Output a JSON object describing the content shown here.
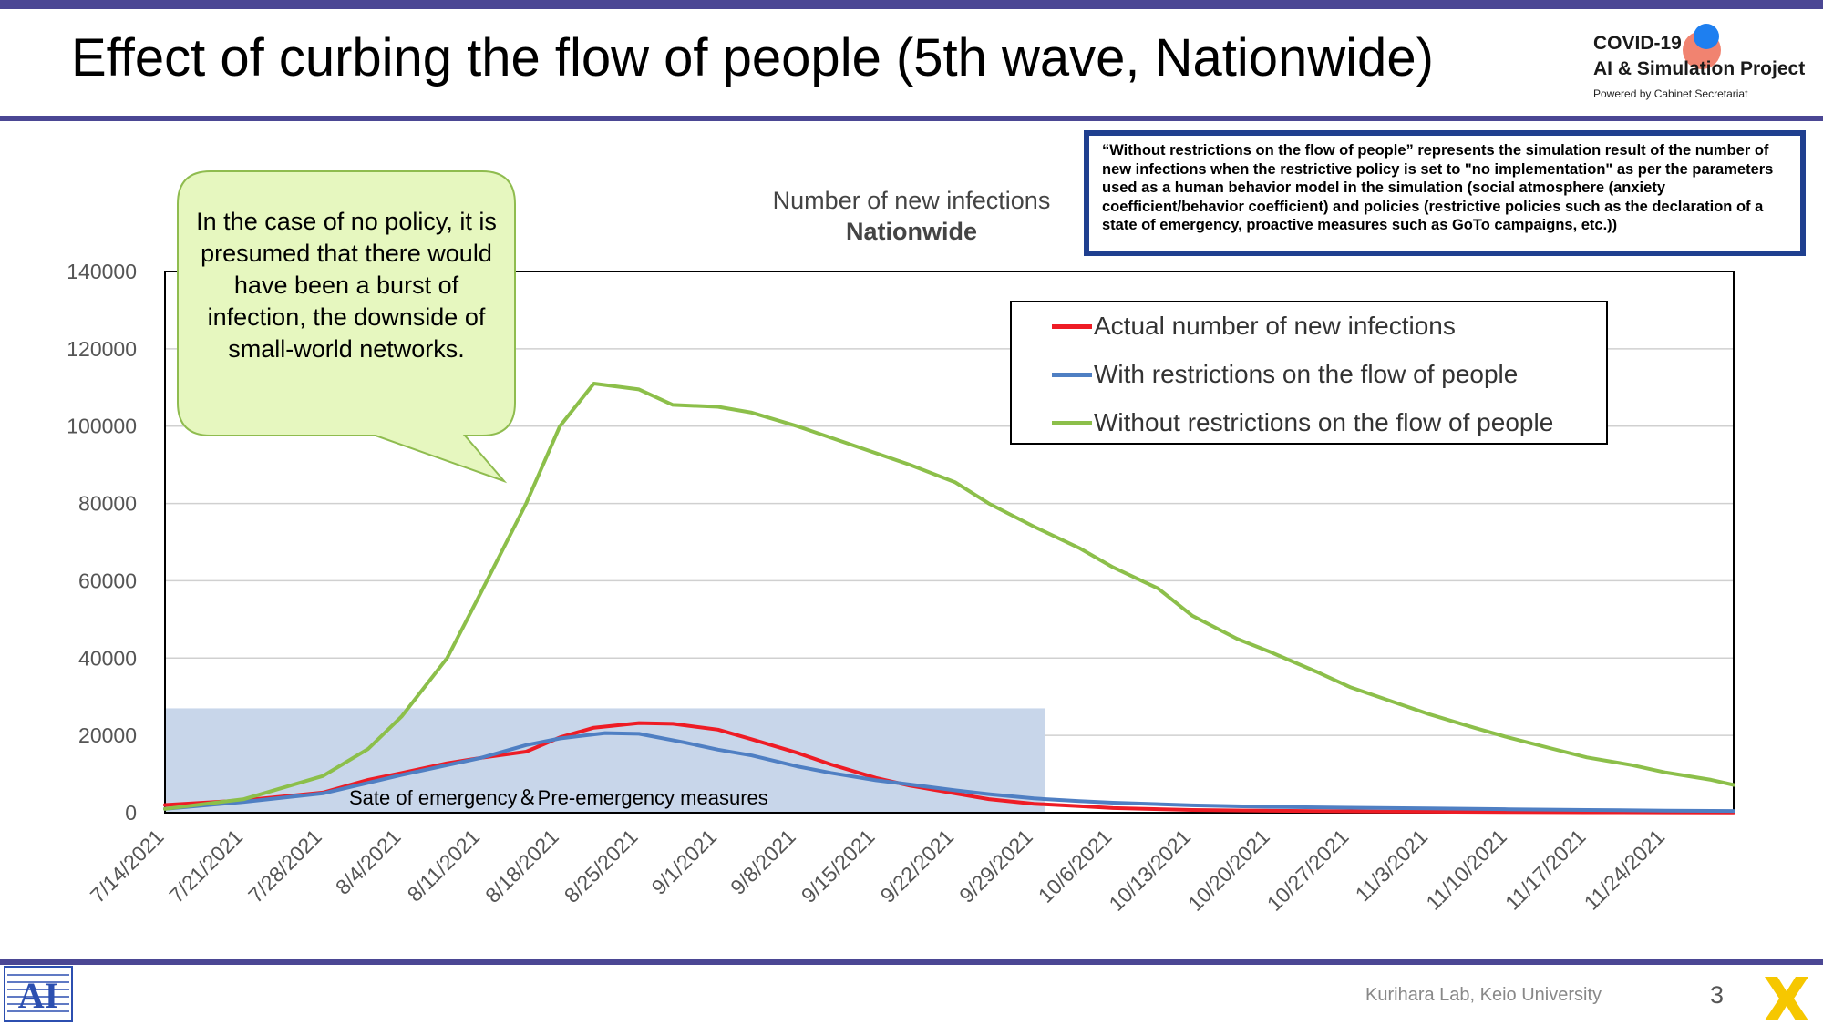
{
  "slide": {
    "title": "Effect of curbing the flow of people (5th wave, Nationwide)",
    "page_number": "3",
    "credit": "Kurihara Lab, Keio University"
  },
  "logo": {
    "line1": "COVID-19",
    "line2": "AI & Simulation Project",
    "line3": "Powered by Cabinet Secretariat"
  },
  "note": "“Without restrictions on the flow of people” represents the simulation result of the number of new infections when the restrictive policy is set to \"no implementation\" as per the parameters used as a human behavior model in the simulation (social atmosphere (anxiety coefficient/behavior coefficient) and policies (restrictive policies such as the declaration of a state of emergency, proactive measures such as GoTo campaigns, etc.))",
  "callout": "In the case of no policy, it is presumed that there would have been a burst of infection, the downside of small-world networks.",
  "colors": {
    "accent": "#4b4794",
    "actual": "#ee1c25",
    "with": "#4f7fc3",
    "without": "#8cbf4a",
    "shade": "#c8d6ea"
  },
  "chart_data": {
    "type": "line",
    "title": "Number of new infections",
    "subtitle": "Nationwide",
    "xlabel": "",
    "ylabel": "",
    "ylim": [
      0,
      140000
    ],
    "yticks": [
      0,
      20000,
      40000,
      60000,
      80000,
      100000,
      120000,
      140000
    ],
    "x_tick_labels": [
      "7/14/2021",
      "7/21/2021",
      "7/28/2021",
      "8/4/2021",
      "8/11/2021",
      "8/18/2021",
      "8/25/2021",
      "9/1/2021",
      "9/8/2021",
      "9/15/2021",
      "9/22/2021",
      "9/29/2021",
      "10/6/2021",
      "10/13/2021",
      "10/20/2021",
      "10/27/2021",
      "11/3/2021",
      "11/10/2021",
      "11/17/2021",
      "11/24/2021"
    ],
    "x_range": [
      "7/14/2021",
      "11/30/2021"
    ],
    "grid": true,
    "legend_position": "top-right",
    "shaded_region": {
      "label": "Sate of emergency＆Pre-emergency measures",
      "x_start": "7/14/2021",
      "x_end": "9/30/2021",
      "y_top": 27000
    },
    "series": [
      {
        "name": "Actual number of new infections",
        "color": "#ee1c25",
        "points": [
          [
            "7/14/2021",
            2000
          ],
          [
            "7/21/2021",
            3200
          ],
          [
            "7/28/2021",
            5200
          ],
          [
            "8/1/2021",
            8500
          ],
          [
            "8/4/2021",
            10300
          ],
          [
            "8/8/2021",
            12800
          ],
          [
            "8/11/2021",
            14200
          ],
          [
            "8/15/2021",
            15800
          ],
          [
            "8/18/2021",
            19500
          ],
          [
            "8/21/2021",
            22000
          ],
          [
            "8/25/2021",
            23200
          ],
          [
            "8/28/2021",
            23000
          ],
          [
            "9/1/2021",
            21500
          ],
          [
            "9/4/2021",
            19000
          ],
          [
            "9/8/2021",
            15500
          ],
          [
            "9/11/2021",
            12500
          ],
          [
            "9/15/2021",
            9000
          ],
          [
            "9/18/2021",
            7000
          ],
          [
            "9/22/2021",
            5000
          ],
          [
            "9/25/2021",
            3500
          ],
          [
            "9/29/2021",
            2300
          ],
          [
            "10/3/2021",
            1700
          ],
          [
            "10/6/2021",
            1200
          ],
          [
            "10/13/2021",
            700
          ],
          [
            "10/20/2021",
            500
          ],
          [
            "10/27/2021",
            350
          ],
          [
            "11/3/2021",
            250
          ],
          [
            "11/10/2021",
            180
          ],
          [
            "11/17/2021",
            120
          ],
          [
            "11/24/2021",
            100
          ],
          [
            "11/30/2021",
            80
          ]
        ]
      },
      {
        "name": "With restrictions on the flow of people",
        "color": "#4f7fc3",
        "points": [
          [
            "7/14/2021",
            1000
          ],
          [
            "7/21/2021",
            2800
          ],
          [
            "7/28/2021",
            5000
          ],
          [
            "8/4/2021",
            9800
          ],
          [
            "8/11/2021",
            14200
          ],
          [
            "8/15/2021",
            17500
          ],
          [
            "8/18/2021",
            19200
          ],
          [
            "8/22/2021",
            20600
          ],
          [
            "8/25/2021",
            20400
          ],
          [
            "8/29/2021",
            18200
          ],
          [
            "9/1/2021",
            16300
          ],
          [
            "9/4/2021",
            14800
          ],
          [
            "9/8/2021",
            12000
          ],
          [
            "9/11/2021",
            10300
          ],
          [
            "9/15/2021",
            8400
          ],
          [
            "9/18/2021",
            7300
          ],
          [
            "9/22/2021",
            5800
          ],
          [
            "9/25/2021",
            4800
          ],
          [
            "9/29/2021",
            3700
          ],
          [
            "10/3/2021",
            3000
          ],
          [
            "10/6/2021",
            2600
          ],
          [
            "10/13/2021",
            1900
          ],
          [
            "10/20/2021",
            1500
          ],
          [
            "10/27/2021",
            1300
          ],
          [
            "11/3/2021",
            1100
          ],
          [
            "11/10/2021",
            900
          ],
          [
            "11/17/2021",
            700
          ],
          [
            "11/24/2021",
            550
          ],
          [
            "11/30/2021",
            450
          ]
        ]
      },
      {
        "name": "Without restrictions on the flow of people",
        "color": "#8cbf4a",
        "points": [
          [
            "7/14/2021",
            1000
          ],
          [
            "7/21/2021",
            3500
          ],
          [
            "7/28/2021",
            9500
          ],
          [
            "8/1/2021",
            16500
          ],
          [
            "8/4/2021",
            25000
          ],
          [
            "8/8/2021",
            40000
          ],
          [
            "8/11/2021",
            57000
          ],
          [
            "8/15/2021",
            80000
          ],
          [
            "8/18/2021",
            100000
          ],
          [
            "8/21/2021",
            111000
          ],
          [
            "8/25/2021",
            109500
          ],
          [
            "8/28/2021",
            105500
          ],
          [
            "9/1/2021",
            105000
          ],
          [
            "9/4/2021",
            103500
          ],
          [
            "9/8/2021",
            100000
          ],
          [
            "9/11/2021",
            97000
          ],
          [
            "9/15/2021",
            93000
          ],
          [
            "9/18/2021",
            90000
          ],
          [
            "9/22/2021",
            85500
          ],
          [
            "9/25/2021",
            80000
          ],
          [
            "9/29/2021",
            74000
          ],
          [
            "10/3/2021",
            68500
          ],
          [
            "10/6/2021",
            63500
          ],
          [
            "10/10/2021",
            58000
          ],
          [
            "10/13/2021",
            51000
          ],
          [
            "10/17/2021",
            45000
          ],
          [
            "10/20/2021",
            41500
          ],
          [
            "10/24/2021",
            36500
          ],
          [
            "10/27/2021",
            32500
          ],
          [
            "10/31/2021",
            28500
          ],
          [
            "11/3/2021",
            25500
          ],
          [
            "11/7/2021",
            22000
          ],
          [
            "11/10/2021",
            19500
          ],
          [
            "11/14/2021",
            16500
          ],
          [
            "11/17/2021",
            14300
          ],
          [
            "11/21/2021",
            12300
          ],
          [
            "11/24/2021",
            10400
          ],
          [
            "11/28/2021",
            8500
          ],
          [
            "11/30/2021",
            7200
          ]
        ]
      }
    ]
  }
}
